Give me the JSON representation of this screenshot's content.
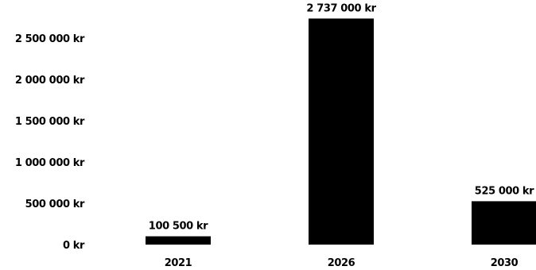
{
  "chart_data": {
    "type": "bar",
    "title": "",
    "xlabel": "",
    "ylabel": "",
    "categories": [
      "2021",
      "2026",
      "2030"
    ],
    "values": [
      100500,
      2737000,
      525000
    ],
    "value_labels": [
      "100 500 kr",
      "2 737 000 kr",
      "525 000 kr"
    ],
    "ylim": [
      0,
      2750000
    ],
    "yticks": [
      0,
      500000,
      1000000,
      1500000,
      2000000,
      2500000
    ],
    "ytick_labels": [
      "0 kr",
      "500 000 kr",
      "1 000 000 kr",
      "1 500 000 kr",
      "2 000 000 kr",
      "2 500 000 kr"
    ],
    "grid": false,
    "legend": "none",
    "bar_color": "#000000"
  }
}
